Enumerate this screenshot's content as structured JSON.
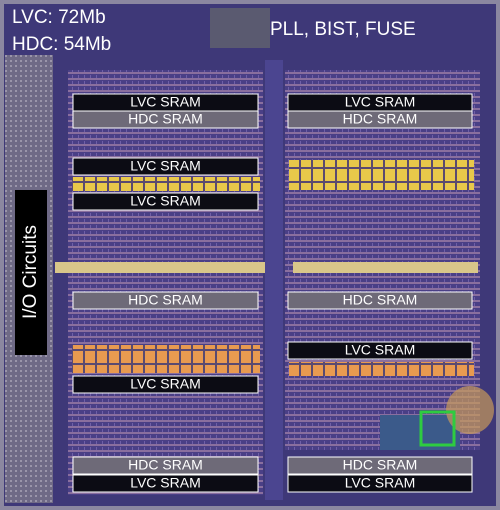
{
  "header": {
    "capacity_lvc": "LVC: 72Mb",
    "capacity_hdc": "HDC: 54Mb",
    "top_block": "PLL, BIST, FUSE"
  },
  "side_label": "I/O Circuits",
  "left_blocks": [
    "LVC SRAM",
    "HDC SRAM",
    "LVC SRAM",
    "LVC SRAM",
    "HDC SRAM",
    "LVC SRAM",
    "HDC SRAM",
    "LVC SRAM"
  ],
  "right_blocks": [
    "LVC SRAM",
    "HDC SRAM",
    "HDC SRAM",
    "LVC SRAM",
    "HDC SRAM",
    "LVC SRAM"
  ]
}
